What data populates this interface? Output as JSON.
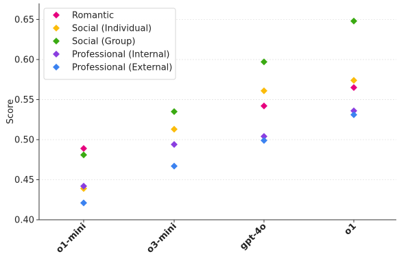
{
  "chart_data": {
    "type": "scatter",
    "title": "",
    "xlabel": "",
    "ylabel": "Score",
    "categories": [
      "o1-mini",
      "o3-mini",
      "gpt-4o",
      "o1"
    ],
    "ylim": [
      0.4,
      0.67
    ],
    "yticks": [
      0.4,
      0.45,
      0.5,
      0.55,
      0.6,
      0.65
    ],
    "ytick_labels": [
      "0.40",
      "0.45",
      "0.50",
      "0.55",
      "0.60",
      "0.65"
    ],
    "grid": "horizontal, light",
    "legend_position": "top-left",
    "marker": "diamond",
    "series": [
      {
        "name": "Romantic",
        "color": "#e6007e",
        "values": [
          0.489,
          null,
          0.542,
          0.565
        ]
      },
      {
        "name": "Social (Individual)",
        "color": "#fbbc0b",
        "values": [
          0.439,
          0.513,
          0.561,
          0.574
        ]
      },
      {
        "name": "Social (Group)",
        "color": "#3aaa12",
        "values": [
          0.481,
          0.535,
          0.597,
          0.648
        ]
      },
      {
        "name": "Professional (Internal)",
        "color": "#8a3ee0",
        "values": [
          0.442,
          0.494,
          0.504,
          0.536
        ]
      },
      {
        "name": "Professional (External)",
        "color": "#3b82f0",
        "values": [
          0.421,
          0.467,
          0.499,
          0.531
        ]
      }
    ]
  }
}
